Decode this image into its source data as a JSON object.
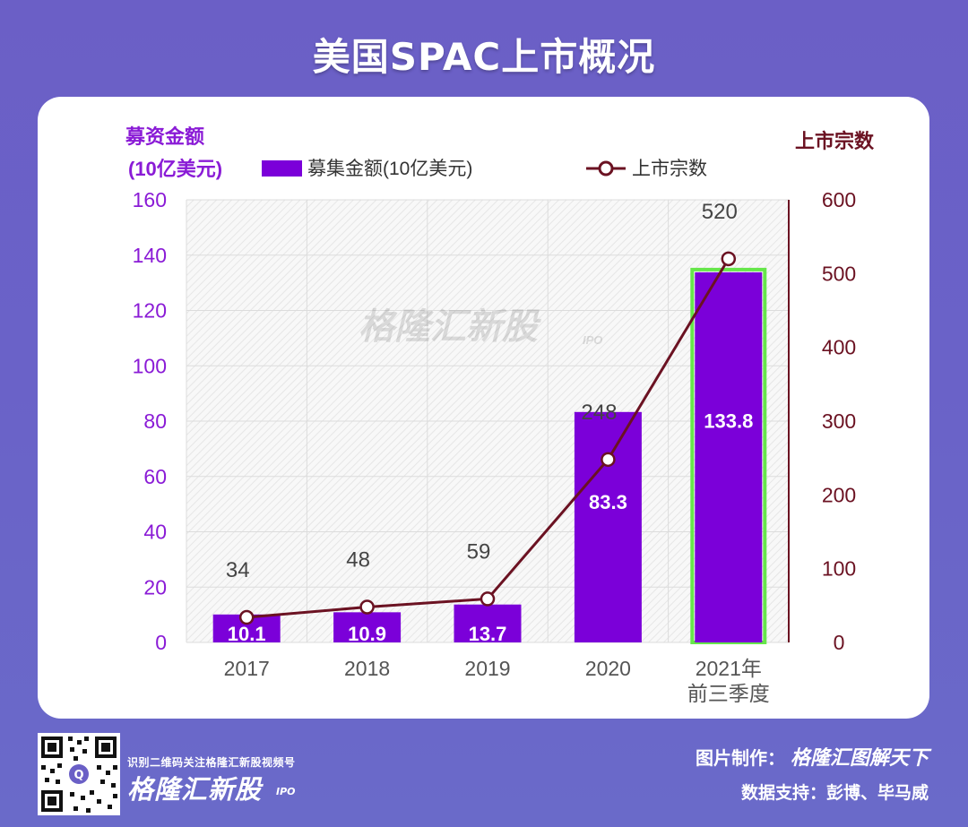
{
  "page": {
    "title": "美国SPAC上市概况",
    "watermark": "格隆汇新股",
    "watermark_sub": "IPO"
  },
  "chart_data": {
    "type": "bar",
    "categories": [
      "2017",
      "2018",
      "2019",
      "2020",
      "2021年\n前三季度"
    ],
    "series": [
      {
        "name": "募集金额(10亿美元)",
        "type": "bar",
        "axis": "left",
        "color": "#7b00d9",
        "values": [
          10.1,
          10.9,
          13.7,
          83.3,
          133.8
        ],
        "labels": [
          "10.1",
          "10.9",
          "13.7",
          "83.3",
          "133.8"
        ],
        "highlight_index": 4,
        "highlight_color": "#66e64a"
      },
      {
        "name": "上市宗数",
        "type": "line",
        "axis": "right",
        "color": "#6b1222",
        "values": [
          34,
          48,
          59,
          248,
          520
        ],
        "labels": [
          "34",
          "48",
          "59",
          "248",
          "520"
        ]
      }
    ],
    "y_left": {
      "label_line1": "募资金额",
      "label_line2": "(10亿美元)",
      "ylim": [
        0,
        160
      ],
      "ticks": [
        "0",
        "20",
        "40",
        "60",
        "80",
        "100",
        "120",
        "140",
        "160"
      ],
      "color": "#8a1bd6"
    },
    "y_right": {
      "label": "上市宗数",
      "ylim": [
        0,
        600
      ],
      "ticks": [
        "0",
        "100",
        "200",
        "300",
        "400",
        "500",
        "600"
      ],
      "color": "#6b1222"
    },
    "grid": true,
    "legend": "top"
  },
  "footer": {
    "qr_caption": "识别二维码关注格隆汇新股视频号",
    "brand": "格隆汇新股",
    "brand_sub": "IPO",
    "credit_label": "图片制作：",
    "credit_value": "格隆汇图解天下",
    "data_source": "数据支持：彭博、毕马威"
  }
}
